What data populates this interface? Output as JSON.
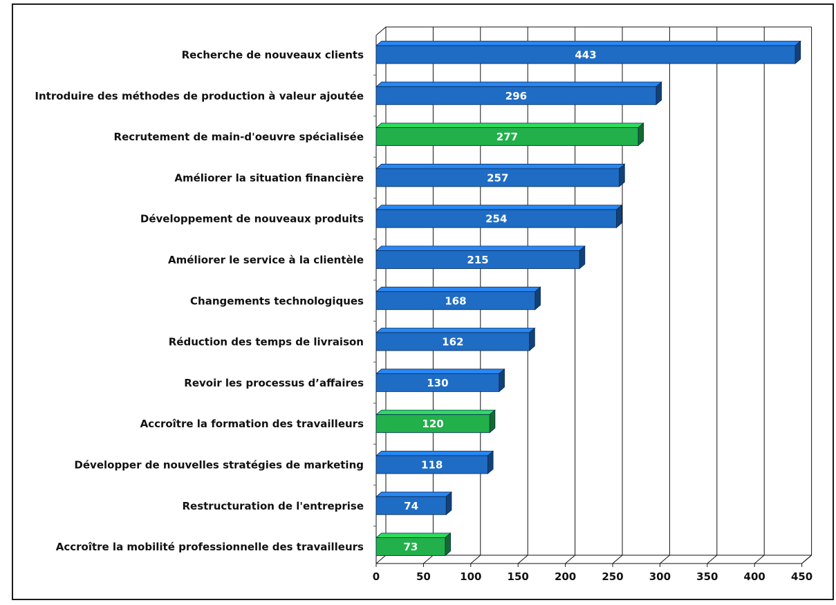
{
  "chart_data": {
    "type": "bar",
    "orientation": "horizontal",
    "style": "3d",
    "categories": [
      "Recherche de nouveaux clients",
      "Introduire des méthodes de production à valeur ajoutée",
      "Recrutement de main-d'oeuvre spécialisée",
      "Améliorer la situation financière",
      "Développement de nouveaux produits",
      "Améliorer le service à la clientèle",
      "Changements technologiques",
      "Réduction des temps de livraison",
      "Revoir les processus d’affaires",
      "Accroître la formation des travailleurs",
      "Développer de nouvelles stratégies de marketing",
      "Restructuration de l'entreprise",
      "Accroître la mobilité professionnelle des travailleurs"
    ],
    "values": [
      443,
      296,
      277,
      257,
      254,
      215,
      168,
      162,
      130,
      120,
      118,
      74,
      73
    ],
    "value_labels": [
      "443",
      "296",
      "277",
      "257",
      "254",
      "215",
      "168",
      "162",
      "130",
      "120",
      "118",
      "74",
      "73"
    ],
    "highlighted": [
      false,
      false,
      true,
      false,
      false,
      false,
      false,
      false,
      false,
      true,
      false,
      false,
      true
    ],
    "colors": {
      "default_bar": "#1f6cc4",
      "highlight_bar": "#22b04b",
      "grid": "#111111",
      "value_text": "#ffffff"
    },
    "xlim": [
      0,
      450
    ],
    "xticks": [
      0,
      50,
      100,
      150,
      200,
      250,
      300,
      350,
      400,
      450
    ],
    "xtick_labels": [
      "0",
      "50",
      "100",
      "150",
      "200",
      "250",
      "300",
      "350",
      "400",
      "450"
    ],
    "title": "",
    "xlabel": "",
    "ylabel": "",
    "grid": true,
    "legend": "none"
  }
}
